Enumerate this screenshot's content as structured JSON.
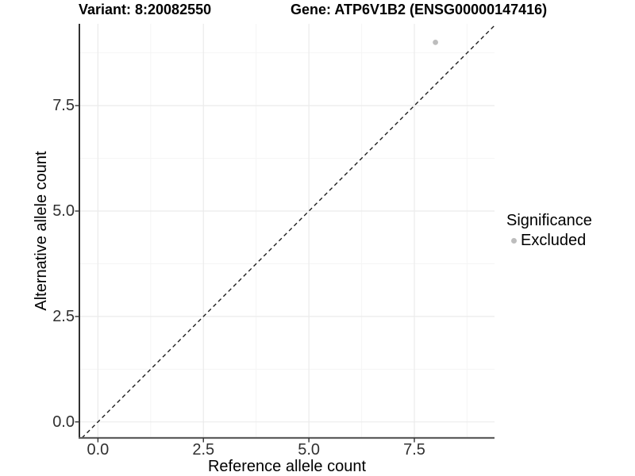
{
  "chart_data": {
    "type": "scatter",
    "title_left": "Variant: 8:20082550",
    "title_right": "Gene: ATP6V1B2 (ENSG00000147416)",
    "xlabel": "Reference allele count",
    "ylabel": "Alternative allele count",
    "xlim": [
      -0.44,
      9.4
    ],
    "ylim": [
      -0.38,
      9.44
    ],
    "x_ticks": {
      "values": [
        0,
        2.5,
        5,
        7.5
      ],
      "labels": [
        "0.0",
        "2.5",
        "5.0",
        "7.5"
      ]
    },
    "y_ticks": {
      "values": [
        0,
        2.5,
        5,
        7.5
      ],
      "labels": [
        "0.0",
        "2.5",
        "5.0",
        "7.5"
      ]
    },
    "minor_tick_values": [
      1.25,
      3.75,
      6.25,
      8.75
    ],
    "grid": "major+minor, light gray on white",
    "series": [
      {
        "name": "Excluded",
        "color": "#bdbdbd",
        "marker": "circle",
        "points": [
          {
            "x": 8,
            "y": 9
          }
        ]
      }
    ],
    "reference_line": {
      "type": "identity y=x",
      "style": "dashed",
      "color": "#1f1f1f"
    },
    "legend": {
      "title": "Significance",
      "position": "right",
      "items": [
        {
          "label": "Excluded",
          "color": "#bdbdbd",
          "marker": "circle"
        }
      ]
    },
    "colors": {
      "background": "#ffffff",
      "grid_major": "#ebebeb",
      "grid_minor": "#f5f5f5",
      "axis_line_left": "#1a1a1a",
      "axis_line_bottom": "#5e5e5e",
      "tick_mark": "#333333",
      "tick_text": "#303030"
    }
  }
}
